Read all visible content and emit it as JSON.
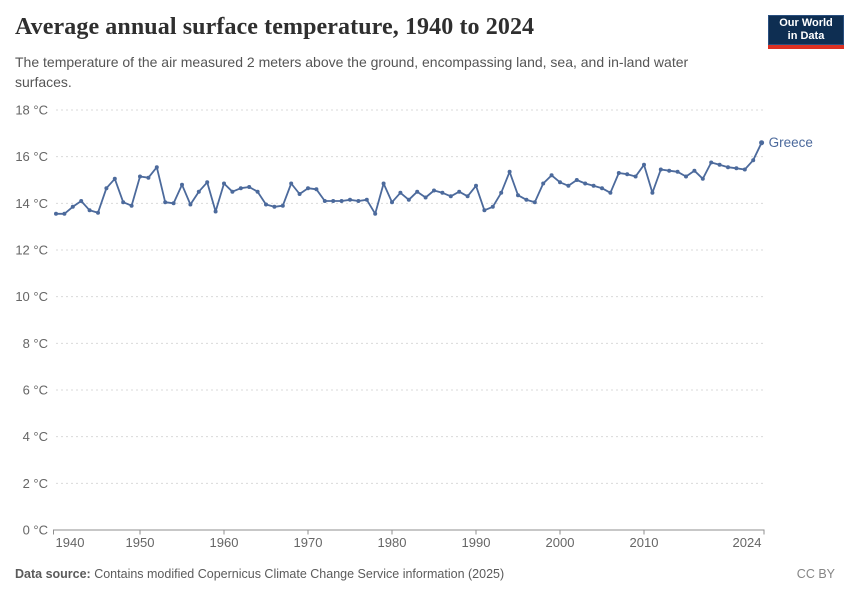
{
  "header": {
    "title": "Average annual surface temperature, 1940 to 2024",
    "subtitle": "The temperature of the air measured 2 meters above the ground, encompassing land, sea, and in-land water surfaces.",
    "logo": {
      "line1": "Our World",
      "line2": "in Data"
    }
  },
  "chart_data": {
    "type": "line",
    "title": "Average annual surface temperature, 1940 to 2024",
    "xlabel": "",
    "ylabel": "",
    "y_unit": "°C",
    "ylim": [
      0,
      18
    ],
    "xlim": [
      1940,
      2024
    ],
    "grid": "horizontal-dashed",
    "legend_position": "end-of-line-label",
    "x_ticks": [
      1940,
      1950,
      1960,
      1970,
      1980,
      1990,
      2000,
      2010,
      2024
    ],
    "y_ticks": [
      0,
      2,
      4,
      6,
      8,
      10,
      12,
      14,
      16,
      18
    ],
    "series": [
      {
        "name": "Greece",
        "color": "#4c6a9c",
        "years": [
          1940,
          1941,
          1942,
          1943,
          1944,
          1945,
          1946,
          1947,
          1948,
          1949,
          1950,
          1951,
          1952,
          1953,
          1954,
          1955,
          1956,
          1957,
          1958,
          1959,
          1960,
          1961,
          1962,
          1963,
          1964,
          1965,
          1966,
          1967,
          1968,
          1969,
          1970,
          1971,
          1972,
          1973,
          1974,
          1975,
          1976,
          1977,
          1978,
          1979,
          1980,
          1981,
          1982,
          1983,
          1984,
          1985,
          1986,
          1987,
          1988,
          1989,
          1990,
          1991,
          1992,
          1993,
          1994,
          1995,
          1996,
          1997,
          1998,
          1999,
          2000,
          2001,
          2002,
          2003,
          2004,
          2005,
          2006,
          2007,
          2008,
          2009,
          2010,
          2011,
          2012,
          2013,
          2014,
          2015,
          2016,
          2017,
          2018,
          2019,
          2020,
          2021,
          2022,
          2023,
          2024
        ],
        "values": [
          13.55,
          13.55,
          13.85,
          14.1,
          13.7,
          13.6,
          14.65,
          15.05,
          14.05,
          13.9,
          15.15,
          15.1,
          15.55,
          14.05,
          14.0,
          14.8,
          13.95,
          14.5,
          14.9,
          13.65,
          14.85,
          14.5,
          14.65,
          14.7,
          14.5,
          13.95,
          13.85,
          13.9,
          14.85,
          14.4,
          14.65,
          14.6,
          14.1,
          14.1,
          14.1,
          14.15,
          14.1,
          14.15,
          13.55,
          14.85,
          14.05,
          14.45,
          14.15,
          14.5,
          14.25,
          14.55,
          14.45,
          14.3,
          14.5,
          14.3,
          14.75,
          13.7,
          13.85,
          14.45,
          15.35,
          14.35,
          14.15,
          14.05,
          14.85,
          15.2,
          14.9,
          14.75,
          15.0,
          14.85,
          14.75,
          14.65,
          14.45,
          15.3,
          15.25,
          15.15,
          15.65,
          14.45,
          15.45,
          15.4,
          15.35,
          15.15,
          15.4,
          15.05,
          15.75,
          15.65,
          15.55,
          15.5,
          15.45,
          15.85,
          16.6
        ]
      }
    ],
    "end_label": "Greece"
  },
  "colors": {
    "line": "#4c6a9c",
    "grid": "#d9d9d9",
    "axis": "#8f8f8f",
    "tick_text": "#666666",
    "logo_bg": "#0e2e52",
    "logo_bar": "#dc3022"
  },
  "footer": {
    "source_label": "Data source:",
    "source_text": " Contains modified Copernicus Climate Change Service information (2025)",
    "license": "CC BY"
  }
}
